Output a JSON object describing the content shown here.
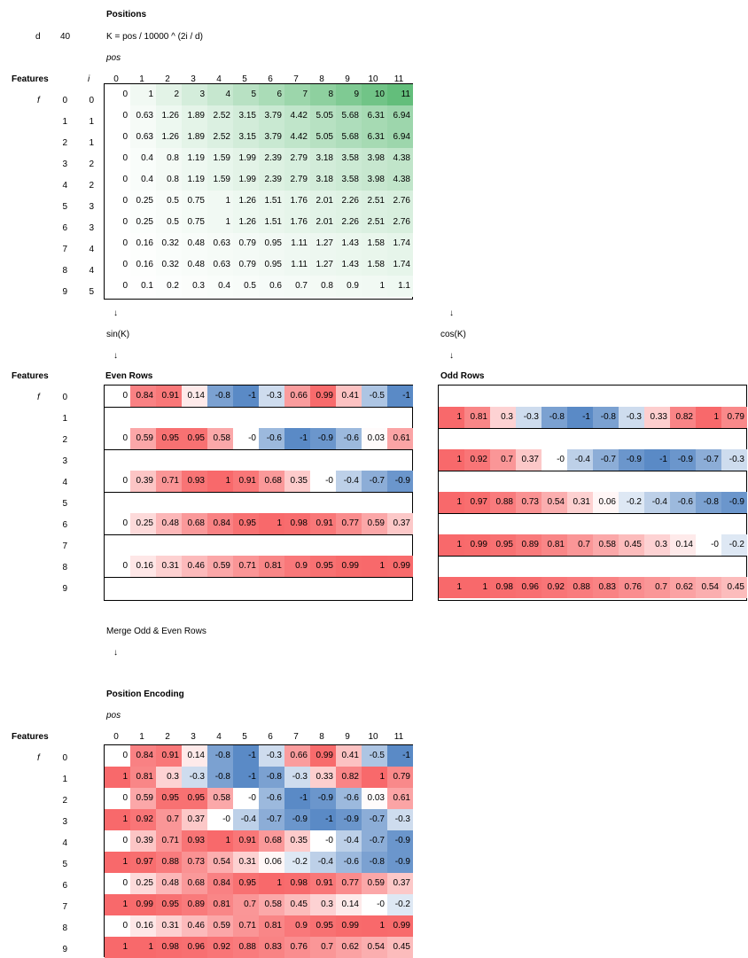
{
  "title": "Positions",
  "params": {
    "d_label": "d",
    "d_value": "40",
    "formula": "K = pos / 10000 ^ (2i / d)"
  },
  "labels": {
    "pos": "pos",
    "features": "Features",
    "f": "f",
    "i": "i",
    "sin": "sin(K)",
    "cos": "cos(K)",
    "even_rows": "Even Rows",
    "odd_rows": "Odd Rows",
    "merge": "Merge Odd & Even Rows",
    "position_encoding": "Position Encoding",
    "arrow": "↓"
  },
  "colors": {
    "green": "#63be7b",
    "red": "#f8696b",
    "blue": "#5a8ac6",
    "white": "#ffffff"
  },
  "columns": [
    "0",
    "1",
    "2",
    "3",
    "4",
    "5",
    "6",
    "7",
    "8",
    "9",
    "10",
    "11"
  ],
  "rows": [
    "0",
    "1",
    "2",
    "3",
    "4",
    "5",
    "6",
    "7",
    "8",
    "9"
  ],
  "i_values": [
    "0",
    "1",
    "1",
    "2",
    "2",
    "3",
    "3",
    "4",
    "4",
    "5"
  ],
  "positions": [
    [
      "0",
      "1",
      "2",
      "3",
      "4",
      "5",
      "6",
      "7",
      "8",
      "9",
      "10",
      "11"
    ],
    [
      "0",
      "0.63",
      "1.26",
      "1.89",
      "2.52",
      "3.15",
      "3.79",
      "4.42",
      "5.05",
      "5.68",
      "6.31",
      "6.94"
    ],
    [
      "0",
      "0.63",
      "1.26",
      "1.89",
      "2.52",
      "3.15",
      "3.79",
      "4.42",
      "5.05",
      "5.68",
      "6.31",
      "6.94"
    ],
    [
      "0",
      "0.4",
      "0.8",
      "1.19",
      "1.59",
      "1.99",
      "2.39",
      "2.79",
      "3.18",
      "3.58",
      "3.98",
      "4.38"
    ],
    [
      "0",
      "0.4",
      "0.8",
      "1.19",
      "1.59",
      "1.99",
      "2.39",
      "2.79",
      "3.18",
      "3.58",
      "3.98",
      "4.38"
    ],
    [
      "0",
      "0.25",
      "0.5",
      "0.75",
      "1",
      "1.26",
      "1.51",
      "1.76",
      "2.01",
      "2.26",
      "2.51",
      "2.76"
    ],
    [
      "0",
      "0.25",
      "0.5",
      "0.75",
      "1",
      "1.26",
      "1.51",
      "1.76",
      "2.01",
      "2.26",
      "2.51",
      "2.76"
    ],
    [
      "0",
      "0.16",
      "0.32",
      "0.48",
      "0.63",
      "0.79",
      "0.95",
      "1.11",
      "1.27",
      "1.43",
      "1.58",
      "1.74"
    ],
    [
      "0",
      "0.16",
      "0.32",
      "0.48",
      "0.63",
      "0.79",
      "0.95",
      "1.11",
      "1.27",
      "1.43",
      "1.58",
      "1.74"
    ],
    [
      "0",
      "0.1",
      "0.2",
      "0.3",
      "0.4",
      "0.5",
      "0.6",
      "0.7",
      "0.8",
      "0.9",
      "1",
      "1.1"
    ]
  ],
  "even_rows": [
    [
      "0",
      "0.84",
      "0.91",
      "0.14",
      "-0.8",
      "-1",
      "-0.3",
      "0.66",
      "0.99",
      "0.41",
      "-0.5",
      "-1"
    ],
    null,
    [
      "0",
      "0.59",
      "0.95",
      "0.95",
      "0.58",
      "-0",
      "-0.6",
      "-1",
      "-0.9",
      "-0.6",
      "0.03",
      "0.61"
    ],
    null,
    [
      "0",
      "0.39",
      "0.71",
      "0.93",
      "1",
      "0.91",
      "0.68",
      "0.35",
      "-0",
      "-0.4",
      "-0.7",
      "-0.9"
    ],
    null,
    [
      "0",
      "0.25",
      "0.48",
      "0.68",
      "0.84",
      "0.95",
      "1",
      "0.98",
      "0.91",
      "0.77",
      "0.59",
      "0.37"
    ],
    null,
    [
      "0",
      "0.16",
      "0.31",
      "0.46",
      "0.59",
      "0.71",
      "0.81",
      "0.9",
      "0.95",
      "0.99",
      "1",
      "0.99"
    ],
    null
  ],
  "odd_rows": [
    null,
    [
      "1",
      "0.81",
      "0.3",
      "-0.3",
      "-0.8",
      "-1",
      "-0.8",
      "-0.3",
      "0.33",
      "0.82",
      "1",
      "0.79"
    ],
    null,
    [
      "1",
      "0.92",
      "0.7",
      "0.37",
      "-0",
      "-0.4",
      "-0.7",
      "-0.9",
      "-1",
      "-0.9",
      "-0.7",
      "-0.3"
    ],
    null,
    [
      "1",
      "0.97",
      "0.88",
      "0.73",
      "0.54",
      "0.31",
      "0.06",
      "-0.2",
      "-0.4",
      "-0.6",
      "-0.8",
      "-0.9"
    ],
    null,
    [
      "1",
      "0.99",
      "0.95",
      "0.89",
      "0.81",
      "0.7",
      "0.58",
      "0.45",
      "0.3",
      "0.14",
      "-0",
      "-0.2"
    ],
    null,
    [
      "1",
      "1",
      "0.98",
      "0.96",
      "0.92",
      "0.88",
      "0.83",
      "0.76",
      "0.7",
      "0.62",
      "0.54",
      "0.45"
    ]
  ],
  "encoding": [
    [
      "0",
      "0.84",
      "0.91",
      "0.14",
      "-0.8",
      "-1",
      "-0.3",
      "0.66",
      "0.99",
      "0.41",
      "-0.5",
      "-1"
    ],
    [
      "1",
      "0.81",
      "0.3",
      "-0.3",
      "-0.8",
      "-1",
      "-0.8",
      "-0.3",
      "0.33",
      "0.82",
      "1",
      "0.79"
    ],
    [
      "0",
      "0.59",
      "0.95",
      "0.95",
      "0.58",
      "-0",
      "-0.6",
      "-1",
      "-0.9",
      "-0.6",
      "0.03",
      "0.61"
    ],
    [
      "1",
      "0.92",
      "0.7",
      "0.37",
      "-0",
      "-0.4",
      "-0.7",
      "-0.9",
      "-1",
      "-0.9",
      "-0.7",
      "-0.3"
    ],
    [
      "0",
      "0.39",
      "0.71",
      "0.93",
      "1",
      "0.91",
      "0.68",
      "0.35",
      "-0",
      "-0.4",
      "-0.7",
      "-0.9"
    ],
    [
      "1",
      "0.97",
      "0.88",
      "0.73",
      "0.54",
      "0.31",
      "0.06",
      "-0.2",
      "-0.4",
      "-0.6",
      "-0.8",
      "-0.9"
    ],
    [
      "0",
      "0.25",
      "0.48",
      "0.68",
      "0.84",
      "0.95",
      "1",
      "0.98",
      "0.91",
      "0.77",
      "0.59",
      "0.37"
    ],
    [
      "1",
      "0.99",
      "0.95",
      "0.89",
      "0.81",
      "0.7",
      "0.58",
      "0.45",
      "0.3",
      "0.14",
      "-0",
      "-0.2"
    ],
    [
      "0",
      "0.16",
      "0.31",
      "0.46",
      "0.59",
      "0.71",
      "0.81",
      "0.9",
      "0.95",
      "0.99",
      "1",
      "0.99"
    ],
    [
      "1",
      "1",
      "0.98",
      "0.96",
      "0.92",
      "0.88",
      "0.83",
      "0.76",
      "0.7",
      "0.62",
      "0.54",
      "0.45"
    ]
  ]
}
